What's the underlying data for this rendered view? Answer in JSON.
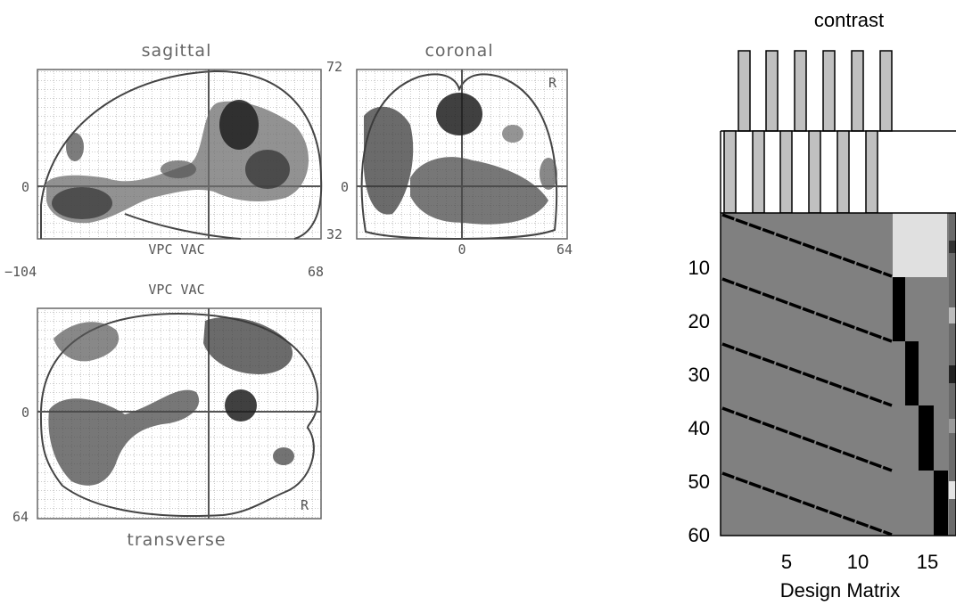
{
  "mip": {
    "sagittal": {
      "title": "sagittal",
      "label_top": "72",
      "label_mid": "0",
      "label_bottom": "32",
      "x_left": "−104",
      "x_right": "68",
      "caption": "VPC VAC"
    },
    "coronal": {
      "title": "coronal",
      "x_mid": "0",
      "x_right": "64",
      "mid": "0",
      "side": "R"
    },
    "transverse": {
      "title": "transverse",
      "caption": "VPC VAC",
      "label_mid": "0",
      "label_bottom": "64",
      "side": "R"
    }
  },
  "design_matrix": {
    "title": "contrast",
    "xlabel": "Design Matrix",
    "x_ticks": [
      "5",
      "10",
      "15"
    ],
    "y_ticks": [
      "10",
      "20",
      "30",
      "40",
      "50",
      "60"
    ],
    "colors": {
      "background": "#808080",
      "session_block": "#e0e0e0",
      "regressor": "#000000",
      "contrast_bar": "#c0c0c0"
    }
  }
}
